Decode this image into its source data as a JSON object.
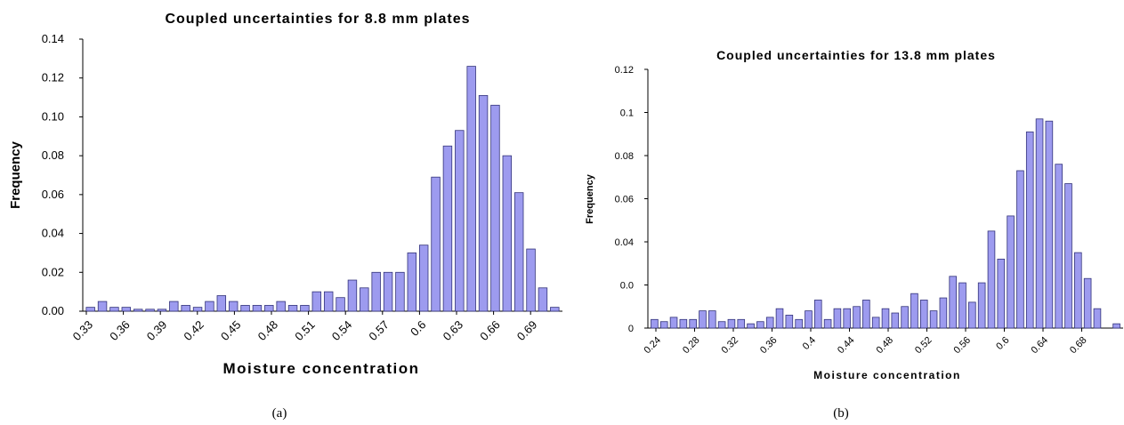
{
  "chart_data": [
    {
      "type": "bar",
      "title": "Coupled uncertainties for 8.8 mm plates",
      "xlabel": "Moisture concentration",
      "ylabel": "Frequency",
      "caption": "(a)",
      "x_tick_labels": [
        "0.33",
        "0.36",
        "0.39",
        "0.42",
        "0.45",
        "0.48",
        "0.51",
        "0.54",
        "0.57",
        "0.6",
        "0.63",
        "0.66",
        "0.69"
      ],
      "y_tick_labels": [
        "0.00",
        "0.02",
        "0.04",
        "0.06",
        "0.08",
        "0.10",
        "0.12",
        "0.14"
      ],
      "ylim": [
        0,
        0.14
      ],
      "x_start": 0.33,
      "bin_width": 0.006,
      "values": [
        0.002,
        0.005,
        0.002,
        0.002,
        0.001,
        0.001,
        0.001,
        0.005,
        0.003,
        0.002,
        0.005,
        0.008,
        0.005,
        0.003,
        0.003,
        0.003,
        0.005,
        0.003,
        0.003,
        0.01,
        0.01,
        0.007,
        0.016,
        0.012,
        0.02,
        0.02,
        0.02,
        0.03,
        0.034,
        0.069,
        0.085,
        0.093,
        0.126,
        0.111,
        0.106,
        0.08,
        0.061,
        0.032,
        0.012,
        0.002
      ],
      "bar_color": "#9d9bef",
      "grid": false,
      "legend": "none"
    },
    {
      "type": "bar",
      "title": "Coupled uncertainties for 13.8 mm plates",
      "xlabel": "Moisture concentration",
      "ylabel": "Frequency",
      "caption": "(b)",
      "x_tick_labels": [
        "0.24",
        "0.28",
        "0.32",
        "0.36",
        "0.4",
        "0.44",
        "0.48",
        "0.52",
        "0.56",
        "0.6",
        "0.64",
        "0.68"
      ],
      "y_tick_labels": [
        "0",
        "0.0",
        "0.04",
        "0.06",
        "0.08",
        "0.1",
        "0.12"
      ],
      "ylim": [
        0,
        0.12
      ],
      "x_start": 0.24,
      "bin_width": 0.01,
      "values": [
        0.004,
        0.003,
        0.005,
        0.004,
        0.004,
        0.008,
        0.008,
        0.003,
        0.004,
        0.004,
        0.002,
        0.003,
        0.005,
        0.009,
        0.006,
        0.004,
        0.008,
        0.013,
        0.004,
        0.009,
        0.009,
        0.01,
        0.013,
        0.005,
        0.009,
        0.007,
        0.01,
        0.016,
        0.013,
        0.008,
        0.014,
        0.024,
        0.021,
        0.012,
        0.021,
        0.045,
        0.032,
        0.052,
        0.073,
        0.091,
        0.097,
        0.096,
        0.076,
        0.067,
        0.035,
        0.023,
        0.009,
        0.0,
        0.002
      ],
      "bar_color": "#9d9bef",
      "grid": false,
      "legend": "none"
    }
  ]
}
